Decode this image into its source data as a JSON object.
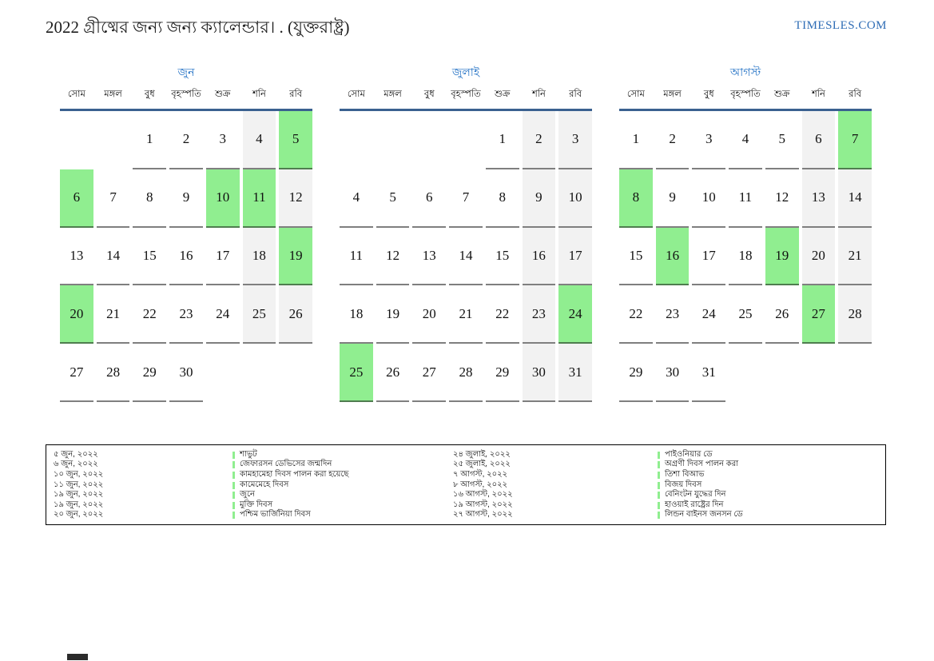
{
  "page": {
    "title": "2022 গ্রীষ্মের জন্য জন্য ক্যালেন্ডার। . (যুক্তরাষ্ট্র)",
    "logo": "TIMESLES.COM"
  },
  "colors": {
    "accent_blue": "#1f6fc4",
    "logo_blue": "#2e6cb5",
    "header_rule_blue": "#3a6190",
    "holiday_green": "#90ee90",
    "weekend_gray": "#f2f2f2",
    "underline_gray": "#7f7f7f"
  },
  "weekdays": [
    "সোম",
    "মঙ্গল",
    "বুধ",
    "বৃহস্পতি",
    "শুক্র",
    "শনি",
    "রবি"
  ],
  "months": [
    {
      "name": "জুন",
      "weeks": [
        [
          {
            "d": "",
            "t": "e"
          },
          {
            "d": "",
            "t": "e"
          },
          {
            "d": "1",
            "t": "n"
          },
          {
            "d": "2",
            "t": "n"
          },
          {
            "d": "3",
            "t": "n"
          },
          {
            "d": "4",
            "t": "w"
          },
          {
            "d": "5",
            "t": "h"
          }
        ],
        [
          {
            "d": "6",
            "t": "h"
          },
          {
            "d": "7",
            "t": "n"
          },
          {
            "d": "8",
            "t": "n"
          },
          {
            "d": "9",
            "t": "n"
          },
          {
            "d": "10",
            "t": "h"
          },
          {
            "d": "11",
            "t": "h"
          },
          {
            "d": "12",
            "t": "w"
          }
        ],
        [
          {
            "d": "13",
            "t": "n"
          },
          {
            "d": "14",
            "t": "n"
          },
          {
            "d": "15",
            "t": "n"
          },
          {
            "d": "16",
            "t": "n"
          },
          {
            "d": "17",
            "t": "n"
          },
          {
            "d": "18",
            "t": "w"
          },
          {
            "d": "19",
            "t": "h"
          }
        ],
        [
          {
            "d": "20",
            "t": "h"
          },
          {
            "d": "21",
            "t": "n"
          },
          {
            "d": "22",
            "t": "n"
          },
          {
            "d": "23",
            "t": "n"
          },
          {
            "d": "24",
            "t": "n"
          },
          {
            "d": "25",
            "t": "w"
          },
          {
            "d": "26",
            "t": "w"
          }
        ],
        [
          {
            "d": "27",
            "t": "n"
          },
          {
            "d": "28",
            "t": "n"
          },
          {
            "d": "29",
            "t": "n"
          },
          {
            "d": "30",
            "t": "n"
          },
          {
            "d": "",
            "t": "e"
          },
          {
            "d": "",
            "t": "e"
          },
          {
            "d": "",
            "t": "e"
          }
        ]
      ]
    },
    {
      "name": "জুলাই",
      "weeks": [
        [
          {
            "d": "",
            "t": "e"
          },
          {
            "d": "",
            "t": "e"
          },
          {
            "d": "",
            "t": "e"
          },
          {
            "d": "",
            "t": "e"
          },
          {
            "d": "1",
            "t": "n"
          },
          {
            "d": "2",
            "t": "w"
          },
          {
            "d": "3",
            "t": "w"
          }
        ],
        [
          {
            "d": "4",
            "t": "n"
          },
          {
            "d": "5",
            "t": "n"
          },
          {
            "d": "6",
            "t": "n"
          },
          {
            "d": "7",
            "t": "n"
          },
          {
            "d": "8",
            "t": "n"
          },
          {
            "d": "9",
            "t": "w"
          },
          {
            "d": "10",
            "t": "w"
          }
        ],
        [
          {
            "d": "11",
            "t": "n"
          },
          {
            "d": "12",
            "t": "n"
          },
          {
            "d": "13",
            "t": "n"
          },
          {
            "d": "14",
            "t": "n"
          },
          {
            "d": "15",
            "t": "n"
          },
          {
            "d": "16",
            "t": "w"
          },
          {
            "d": "17",
            "t": "w"
          }
        ],
        [
          {
            "d": "18",
            "t": "n"
          },
          {
            "d": "19",
            "t": "n"
          },
          {
            "d": "20",
            "t": "n"
          },
          {
            "d": "21",
            "t": "n"
          },
          {
            "d": "22",
            "t": "n"
          },
          {
            "d": "23",
            "t": "w"
          },
          {
            "d": "24",
            "t": "h"
          }
        ],
        [
          {
            "d": "25",
            "t": "h"
          },
          {
            "d": "26",
            "t": "n"
          },
          {
            "d": "27",
            "t": "n"
          },
          {
            "d": "28",
            "t": "n"
          },
          {
            "d": "29",
            "t": "n"
          },
          {
            "d": "30",
            "t": "w"
          },
          {
            "d": "31",
            "t": "w"
          }
        ]
      ]
    },
    {
      "name": "আগস্ট",
      "weeks": [
        [
          {
            "d": "1",
            "t": "n"
          },
          {
            "d": "2",
            "t": "n"
          },
          {
            "d": "3",
            "t": "n"
          },
          {
            "d": "4",
            "t": "n"
          },
          {
            "d": "5",
            "t": "n"
          },
          {
            "d": "6",
            "t": "w"
          },
          {
            "d": "7",
            "t": "h"
          }
        ],
        [
          {
            "d": "8",
            "t": "h"
          },
          {
            "d": "9",
            "t": "n"
          },
          {
            "d": "10",
            "t": "n"
          },
          {
            "d": "11",
            "t": "n"
          },
          {
            "d": "12",
            "t": "n"
          },
          {
            "d": "13",
            "t": "w"
          },
          {
            "d": "14",
            "t": "w"
          }
        ],
        [
          {
            "d": "15",
            "t": "n"
          },
          {
            "d": "16",
            "t": "h"
          },
          {
            "d": "17",
            "t": "n"
          },
          {
            "d": "18",
            "t": "n"
          },
          {
            "d": "19",
            "t": "h"
          },
          {
            "d": "20",
            "t": "w"
          },
          {
            "d": "21",
            "t": "w"
          }
        ],
        [
          {
            "d": "22",
            "t": "n"
          },
          {
            "d": "23",
            "t": "n"
          },
          {
            "d": "24",
            "t": "n"
          },
          {
            "d": "25",
            "t": "n"
          },
          {
            "d": "26",
            "t": "n"
          },
          {
            "d": "27",
            "t": "h"
          },
          {
            "d": "28",
            "t": "w"
          }
        ],
        [
          {
            "d": "29",
            "t": "n"
          },
          {
            "d": "30",
            "t": "n"
          },
          {
            "d": "31",
            "t": "n"
          },
          {
            "d": "",
            "t": "e"
          },
          {
            "d": "",
            "t": "e"
          },
          {
            "d": "",
            "t": "e"
          },
          {
            "d": "",
            "t": "e"
          }
        ]
      ]
    }
  ],
  "legend": {
    "groups": [
      {
        "entries": [
          {
            "date": "৫ জুন, ২০২২",
            "event": "শাভুট"
          },
          {
            "date": "৬ জুন, ২০২২",
            "event": "জেফারসন ডেভিসের জন্মদিন"
          },
          {
            "date": "১০ জুন, ২০২২",
            "event": "কামহামেহা দিবস পালন করা হয়েছে"
          },
          {
            "date": "১১ জুন, ২০২২",
            "event": "কামেমেহে দিবস"
          },
          {
            "date": "১৯ জুন, ২০২২",
            "event": "জুনে"
          },
          {
            "date": "১৯ জুন, ২০২২",
            "event": "মুক্তি দিবস"
          },
          {
            "date": "২০ জুন, ২০২২",
            "event": "পশ্চিম ভার্জিনিয়া দিবস"
          }
        ]
      },
      {
        "entries": [
          {
            "date": "২৪ জুলাই, ২০২২",
            "event": "পাইওনিয়ার ডে"
          },
          {
            "date": "২৫ জুলাই, ২০২২",
            "event": "অগ্রণী দিবস পালন করা"
          },
          {
            "date": "৭ আগস্ট, ২০২২",
            "event": "তিশা বিআভ"
          },
          {
            "date": "৮ আগস্ট, ২০২২",
            "event": "বিজয় দিবস"
          },
          {
            "date": "১৬ আগস্ট, ২০২২",
            "event": "বেনিংটন যুদ্ধের দিন"
          },
          {
            "date": "১৯ আগস্ট, ২০২২",
            "event": "হাওয়াই রাষ্ট্রের দিন"
          },
          {
            "date": "২৭ আগস্ট, ২০২২",
            "event": "লিন্ডন বাইনস জনসন ডে"
          }
        ]
      }
    ]
  }
}
